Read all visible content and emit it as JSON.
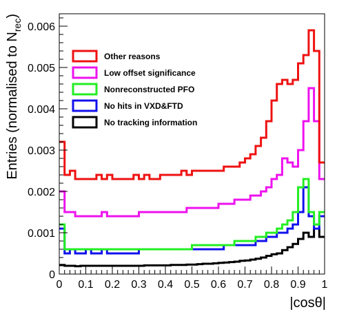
{
  "chart_data": {
    "type": "line",
    "style": "step-histogram",
    "xlabel": "|cosθ|",
    "ylabel_main": "Entries (normalised to N",
    "ylabel_sub": "rec",
    "ylabel_close": ")",
    "xlim": [
      0,
      1
    ],
    "ylim": [
      0,
      0.0063
    ],
    "bins": 50,
    "xticks": [
      0,
      0.1,
      0.2,
      0.3,
      0.4,
      0.5,
      0.6,
      0.7,
      0.8,
      0.9,
      1
    ],
    "xtick_labels": [
      "0",
      "0.1",
      "0.2",
      "0.3",
      "0.4",
      "0.5",
      "0.6",
      "0.7",
      "0.8",
      "0.9",
      "1"
    ],
    "yticks": [
      0,
      0.001,
      0.002,
      0.003,
      0.004,
      0.005,
      0.006
    ],
    "ytick_labels": [
      "0",
      "0.001",
      "0.002",
      "0.003",
      "0.004",
      "0.005",
      "0.006"
    ],
    "legend_position": "top-left",
    "grid": false,
    "series": [
      {
        "name": "Other reasons",
        "color": "#ee1111",
        "values": [
          0.0032,
          0.0024,
          0.0025,
          0.0023,
          0.0023,
          0.0023,
          0.0023,
          0.0024,
          0.0023,
          0.0024,
          0.0023,
          0.0023,
          0.0023,
          0.0023,
          0.0024,
          0.0023,
          0.0024,
          0.0023,
          0.0023,
          0.0024,
          0.0024,
          0.0024,
          0.0024,
          0.0025,
          0.0024,
          0.0025,
          0.0025,
          0.0025,
          0.0025,
          0.0025,
          0.0025,
          0.0026,
          0.0026,
          0.0026,
          0.0027,
          0.0028,
          0.0029,
          0.0031,
          0.0033,
          0.0037,
          0.0042,
          0.0046,
          0.0047,
          0.0046,
          0.0047,
          0.0051,
          0.0053,
          0.0059,
          0.0054,
          0.0027
        ]
      },
      {
        "name": "Low offset significance",
        "color": "#ee11ee",
        "values": [
          0.002,
          0.0015,
          0.0015,
          0.0014,
          0.0014,
          0.0014,
          0.0014,
          0.0014,
          0.0015,
          0.0014,
          0.0014,
          0.0014,
          0.0014,
          0.0014,
          0.0014,
          0.0015,
          0.0015,
          0.0015,
          0.0015,
          0.0015,
          0.0015,
          0.0015,
          0.0015,
          0.0015,
          0.0016,
          0.0016,
          0.0016,
          0.0016,
          0.0016,
          0.0016,
          0.0017,
          0.0017,
          0.0017,
          0.0018,
          0.0018,
          0.0018,
          0.0019,
          0.0019,
          0.002,
          0.0021,
          0.0023,
          0.0024,
          0.0028,
          0.0027,
          0.0026,
          0.003,
          0.0037,
          0.0045,
          0.0037,
          0.0023
        ]
      },
      {
        "name": "Nonreconstructed PFO",
        "color": "#22ee22",
        "values": [
          0.0012,
          0.0006,
          0.0006,
          0.0006,
          0.0006,
          0.0006,
          0.0006,
          0.0006,
          0.0006,
          0.0006,
          0.0006,
          0.0006,
          0.0006,
          0.0006,
          0.0006,
          0.0006,
          0.0006,
          0.0006,
          0.0006,
          0.0006,
          0.0006,
          0.0006,
          0.0006,
          0.0006,
          0.0006,
          0.0007,
          0.0007,
          0.0007,
          0.0007,
          0.0007,
          0.0007,
          0.0007,
          0.0007,
          0.0008,
          0.0008,
          0.0008,
          0.0008,
          0.0009,
          0.0009,
          0.001,
          0.001,
          0.0011,
          0.0012,
          0.0013,
          0.0015,
          0.0021,
          0.0023,
          0.0015,
          0.0012,
          0.0015
        ]
      },
      {
        "name": "No hits in VXD&FTD",
        "color": "#1111ee",
        "values": [
          0.0011,
          0.0005,
          0.0006,
          0.0005,
          0.0005,
          0.0006,
          0.0005,
          0.0005,
          0.0006,
          0.0005,
          0.0005,
          0.0005,
          0.0005,
          0.0005,
          0.0005,
          0.0006,
          0.0006,
          0.0006,
          0.0006,
          0.0006,
          0.0006,
          0.0006,
          0.0006,
          0.0006,
          0.0006,
          0.0006,
          0.0006,
          0.0006,
          0.0006,
          0.0006,
          0.0006,
          0.0007,
          0.0007,
          0.0007,
          0.0007,
          0.0007,
          0.0007,
          0.0008,
          0.0008,
          0.0009,
          0.0009,
          0.001,
          0.001,
          0.0011,
          0.0012,
          0.0015,
          0.0021,
          0.0014,
          0.0011,
          0.0014
        ]
      },
      {
        "name": "No tracking information",
        "color": "#000000",
        "values": [
          0.00022,
          0.0002,
          0.0002,
          0.00019,
          0.0002,
          0.0002,
          0.0002,
          0.0002,
          0.0002,
          0.0002,
          0.0002,
          0.0002,
          0.0002,
          0.0002,
          0.0002,
          0.0002,
          0.00021,
          0.00021,
          0.00021,
          0.00021,
          0.00021,
          0.00022,
          0.00022,
          0.00022,
          0.00023,
          0.00023,
          0.00024,
          0.00025,
          0.00025,
          0.00026,
          0.00027,
          0.00028,
          0.00029,
          0.0003,
          0.00032,
          0.00033,
          0.00035,
          0.00037,
          0.0004,
          0.00044,
          0.00048,
          0.0005,
          0.00058,
          0.00065,
          0.00073,
          0.00085,
          0.001,
          0.0009,
          0.0011,
          0.0009
        ]
      }
    ]
  }
}
